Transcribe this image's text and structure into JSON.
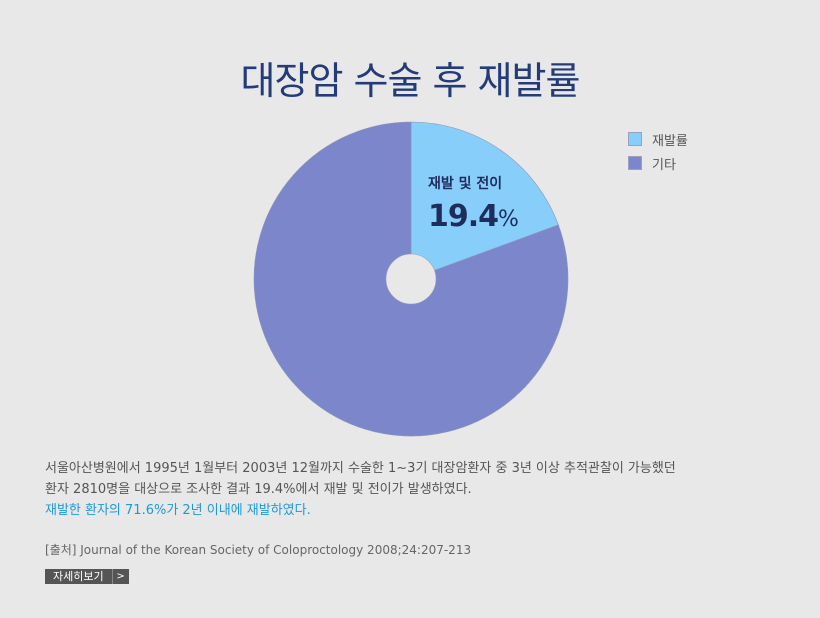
{
  "page": {
    "title": "대장암 수술 후 재발률"
  },
  "chart_data": {
    "type": "pie",
    "title": "대장암 수술 후 재발률",
    "categories": [
      "재발률",
      "기타"
    ],
    "values": [
      19.4,
      80.6
    ],
    "colors": [
      "#87cefa",
      "#7b86cb"
    ],
    "legend_position": "top-right",
    "donut_hole": true,
    "slice_label": {
      "name": "재발 및 전이",
      "value": "19.4",
      "unit": "%"
    }
  },
  "legend": {
    "items": [
      {
        "label": "재발률",
        "color": "#87cefa"
      },
      {
        "label": "기타",
        "color": "#7b86cb"
      }
    ]
  },
  "description": {
    "line1": "서울아산병원에서 1995년 1월부터 2003년 12월까지 수술한 1~3기 대장암환자 중 3년 이상 추적관찰이 가능했던",
    "line2": "환자 2810명을 대상으로 조사한 결과 19.4%에서 재발 및 전이가 발생하였다.",
    "highlight": "재발한 환자의 71.6%가 2년 이내에 재발하였다."
  },
  "source": "[출처] Journal of the Korean Society of Coloproctology 2008;24:207-213",
  "detail_button": {
    "label": "자세히보기",
    "arrow": ">"
  }
}
